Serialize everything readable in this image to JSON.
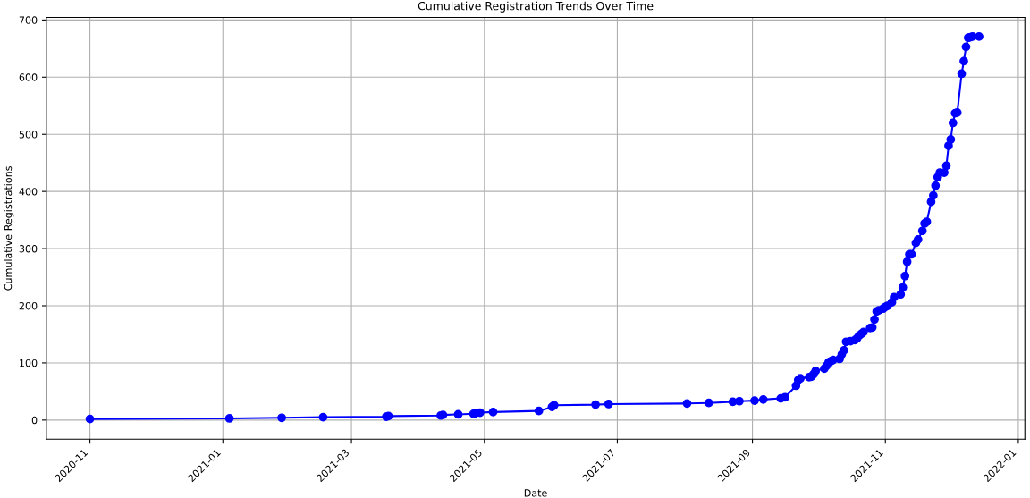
{
  "chart_data": {
    "type": "line",
    "title": "Cumulative Registration Trends Over Time",
    "xlabel": "Date",
    "ylabel": "Cumulative Registrations",
    "x": [
      "2020-11-01",
      "2021-01-04",
      "2021-01-28",
      "2021-02-16",
      "2021-03-17",
      "2021-03-18",
      "2021-04-11",
      "2021-04-12",
      "2021-04-19",
      "2021-04-26",
      "2021-04-27",
      "2021-04-29",
      "2021-05-05",
      "2021-05-26",
      "2021-06-01",
      "2021-06-02",
      "2021-06-21",
      "2021-06-27",
      "2021-08-02",
      "2021-08-12",
      "2021-08-23",
      "2021-08-26",
      "2021-09-02",
      "2021-09-06",
      "2021-09-14",
      "2021-09-16",
      "2021-09-21",
      "2021-09-22",
      "2021-09-23",
      "2021-09-27",
      "2021-09-28",
      "2021-09-29",
      "2021-09-30",
      "2021-10-04",
      "2021-10-05",
      "2021-10-06",
      "2021-10-07",
      "2021-10-08",
      "2021-10-11",
      "2021-10-12",
      "2021-10-13",
      "2021-10-14",
      "2021-10-16",
      "2021-10-18",
      "2021-10-19",
      "2021-10-20",
      "2021-10-21",
      "2021-10-22",
      "2021-10-25",
      "2021-10-26",
      "2021-10-27",
      "2021-10-28",
      "2021-10-29",
      "2021-10-31",
      "2021-11-01",
      "2021-11-02",
      "2021-11-04",
      "2021-11-05",
      "2021-11-08",
      "2021-11-09",
      "2021-11-10",
      "2021-11-11",
      "2021-11-12",
      "2021-11-13",
      "2021-11-15",
      "2021-11-16",
      "2021-11-18",
      "2021-11-19",
      "2021-11-20",
      "2021-11-22",
      "2021-11-23",
      "2021-11-24",
      "2021-11-25",
      "2021-11-26",
      "2021-11-28",
      "2021-11-29",
      "2021-11-30",
      "2021-12-01",
      "2021-12-02",
      "2021-12-03",
      "2021-12-04",
      "2021-12-06",
      "2021-12-07",
      "2021-12-08",
      "2021-12-09",
      "2021-12-10",
      "2021-12-11",
      "2021-12-14"
    ],
    "series": [
      {
        "color": "#0000ff",
        "values": [
          2,
          3,
          4,
          5,
          6,
          7,
          8,
          9,
          10,
          11,
          12,
          13,
          14,
          16,
          23,
          26,
          27,
          28,
          29,
          30,
          32,
          33,
          34,
          36,
          38,
          40,
          60,
          70,
          73,
          75,
          76,
          80,
          86,
          90,
          95,
          101,
          103,
          105,
          107,
          115,
          122,
          137,
          138,
          140,
          143,
          148,
          151,
          154,
          161,
          162,
          176,
          190,
          192,
          195,
          198,
          200,
          206,
          215,
          220,
          232,
          252,
          277,
          290,
          290,
          310,
          316,
          331,
          344,
          347,
          382,
          393,
          410,
          425,
          433,
          433,
          445,
          480,
          491,
          520,
          537,
          538,
          606,
          628,
          653,
          669,
          670,
          671,
          671
        ]
      }
    ],
    "xlim": [
      "2020-10-12",
      "2022-01-04"
    ],
    "ylim": [
      -33.5,
      704.5
    ],
    "xticks": [
      "2020-11",
      "2021-01",
      "2021-03",
      "2021-05",
      "2021-07",
      "2021-09",
      "2021-11",
      "2022-01"
    ],
    "yticks": [
      0,
      100,
      200,
      300,
      400,
      500,
      600,
      700
    ],
    "grid": true,
    "marker": "circle",
    "line_style": "solid"
  }
}
